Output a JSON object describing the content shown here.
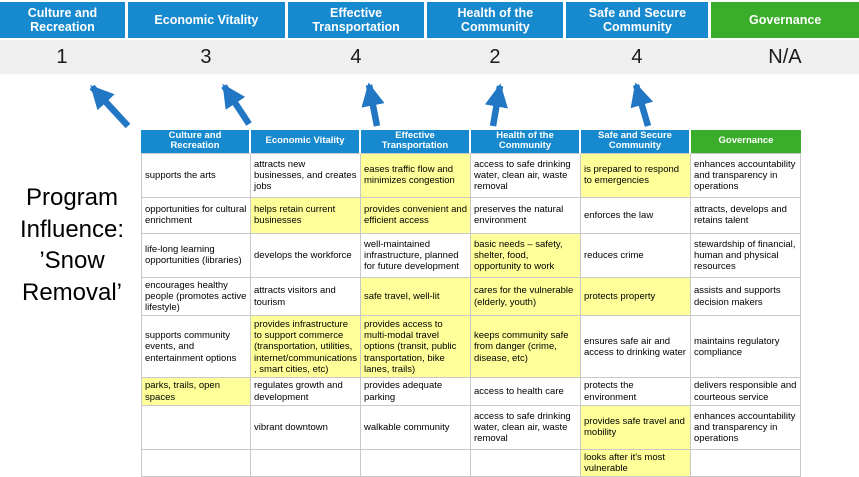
{
  "colors": {
    "pillar_blue": "#1789ce",
    "pillar_green": "#3aad2a",
    "highlight_yellow": "#ffff99",
    "arrow_blue": "#2277c4",
    "score_bg": "#efefef"
  },
  "program_label": "Program Influence: ’Snow Removal’",
  "scoreboard": {
    "pillars": [
      {
        "label": "Culture and Recreation",
        "score": "1",
        "theme": "blue"
      },
      {
        "label": "Economic Vitality",
        "score": "3",
        "theme": "blue"
      },
      {
        "label": "Effective Transportation",
        "score": "4",
        "theme": "blue"
      },
      {
        "label": "Health of the Community",
        "score": "2",
        "theme": "blue"
      },
      {
        "label": "Safe and Secure Community",
        "score": "4",
        "theme": "blue"
      },
      {
        "label": "Governance",
        "score": "N/A",
        "theme": "green"
      }
    ]
  },
  "matrix": {
    "headers": [
      {
        "label": "Culture and Recreation",
        "theme": "blue"
      },
      {
        "label": "Economic Vitality",
        "theme": "blue"
      },
      {
        "label": "Effective Transportation",
        "theme": "blue"
      },
      {
        "label": "Health of the Community",
        "theme": "blue"
      },
      {
        "label": "Safe and Secure Community",
        "theme": "blue"
      },
      {
        "label": "Governance",
        "theme": "green"
      }
    ],
    "rows": [
      [
        {
          "text": "supports the arts",
          "highlight": false
        },
        {
          "text": "attracts new businesses, and creates jobs",
          "highlight": false
        },
        {
          "text": "eases traffic flow and minimizes congestion",
          "highlight": true
        },
        {
          "text": "access to safe drinking water, clean air, waste removal",
          "highlight": false
        },
        {
          "text": "is prepared to respond to emergencies",
          "highlight": true
        },
        {
          "text": "enhances accountability and transparency in operations",
          "highlight": false
        }
      ],
      [
        {
          "text": "opportunities for cultural enrichment",
          "highlight": false
        },
        {
          "text": "helps retain current businesses",
          "highlight": true
        },
        {
          "text": "provides convenient and efficient access",
          "highlight": true
        },
        {
          "text": "preserves the natural environment",
          "highlight": false
        },
        {
          "text": "enforces the law",
          "highlight": false
        },
        {
          "text": "attracts, develops and retains talent",
          "highlight": false
        }
      ],
      [
        {
          "text": "life-long learning opportunities (libraries)",
          "highlight": false
        },
        {
          "text": "develops the workforce",
          "highlight": false
        },
        {
          "text": "well-maintained infrastructure, planned for future development",
          "highlight": false
        },
        {
          "text": "basic needs – safety, shelter, food, opportunity to work",
          "highlight": true
        },
        {
          "text": "reduces crime",
          "highlight": false
        },
        {
          "text": "stewardship of financial, human and physical resources",
          "highlight": false
        }
      ],
      [
        {
          "text": "encourages healthy people (promotes active lifestyle)",
          "highlight": false
        },
        {
          "text": "attracts visitors and tourism",
          "highlight": false
        },
        {
          "text": "safe travel, well-lit",
          "highlight": true
        },
        {
          "text": "cares for the vulnerable (elderly, youth)",
          "highlight": true
        },
        {
          "text": "protects property",
          "highlight": true
        },
        {
          "text": "assists and supports decision makers",
          "highlight": false
        }
      ],
      [
        {
          "text": "supports community events, and entertainment options",
          "highlight": false
        },
        {
          "text": "provides infrastructure to support commerce (transportation, utilities, internet/communications, smart cities, etc)",
          "highlight": true
        },
        {
          "text": "provides access to multi-modal travel options (transit, public transportation, bike lanes, trails)",
          "highlight": true
        },
        {
          "text": "keeps community safe from danger (crime, disease, etc)",
          "highlight": true
        },
        {
          "text": "ensures safe air and access to drinking water",
          "highlight": false
        },
        {
          "text": "maintains regulatory compliance",
          "highlight": false
        }
      ],
      [
        {
          "text": "parks, trails, open spaces",
          "highlight": true
        },
        {
          "text": "regulates growth and development",
          "highlight": false
        },
        {
          "text": "provides adequate parking",
          "highlight": false
        },
        {
          "text": "access to health care",
          "highlight": false
        },
        {
          "text": "protects the environment",
          "highlight": false
        },
        {
          "text": "delivers responsible and courteous service",
          "highlight": false
        }
      ],
      [
        {
          "text": "",
          "highlight": false
        },
        {
          "text": "vibrant downtown",
          "highlight": false
        },
        {
          "text": "walkable community",
          "highlight": false
        },
        {
          "text": "access to safe drinking water, clean air, waste removal",
          "highlight": false
        },
        {
          "text": "provides safe travel and mobility",
          "highlight": true
        },
        {
          "text": "enhances accountability and transparency in operations",
          "highlight": false
        }
      ],
      [
        {
          "text": "",
          "highlight": false
        },
        {
          "text": "",
          "highlight": false
        },
        {
          "text": "",
          "highlight": false
        },
        {
          "text": "",
          "highlight": false
        },
        {
          "text": "looks after it's most vulnerable",
          "highlight": true
        },
        {
          "text": "",
          "highlight": false
        }
      ]
    ]
  }
}
